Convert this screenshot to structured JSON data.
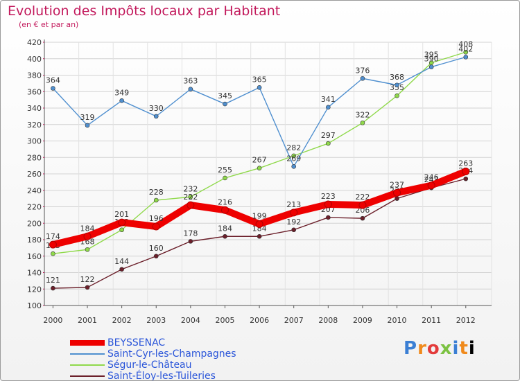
{
  "title": "Evolution des Impôts locaux par Habitant",
  "subtitle": "(en € et par an)",
  "logo_text": "Proxiti",
  "chart_data": {
    "type": "line",
    "title": "Evolution des Impôts locaux par Habitant",
    "ylabel": "(en € et par an)",
    "x": [
      2000,
      2001,
      2002,
      2003,
      2004,
      2005,
      2006,
      2007,
      2008,
      2009,
      2010,
      2011,
      2012
    ],
    "ylim": [
      100,
      420
    ],
    "yticks": [
      100,
      120,
      140,
      160,
      180,
      200,
      220,
      240,
      260,
      280,
      300,
      320,
      340,
      360,
      380,
      400,
      420
    ],
    "series": [
      {
        "name": "Saint-Éloy-les-Tuileries",
        "color": "#6b1f2a",
        "values": [
          121,
          122,
          144,
          160,
          178,
          184,
          184,
          192,
          207,
          206,
          230,
          243,
          254
        ]
      },
      {
        "name": "Ségur-le-Château",
        "color": "#8fd94a",
        "values": [
          163,
          168,
          192,
          228,
          232,
          255,
          267,
          282,
          297,
          322,
          355,
          395,
          408
        ]
      },
      {
        "name": "Saint-Cyr-les-Champagnes",
        "color": "#4f8fcf",
        "values": [
          364,
          319,
          349,
          330,
          363,
          345,
          365,
          269,
          341,
          376,
          368,
          390,
          402
        ]
      },
      {
        "name": "BEYSSENAC",
        "color": "#ee0000",
        "values": [
          174,
          184,
          201,
          196,
          222,
          216,
          199,
          213,
          223,
          222,
          237,
          246,
          263
        ]
      }
    ],
    "legend": [
      "BEYSSENAC",
      "Saint-Cyr-les-Champagnes",
      "Ségur-le-Château",
      "Saint-Éloy-les-Tuileries"
    ]
  }
}
